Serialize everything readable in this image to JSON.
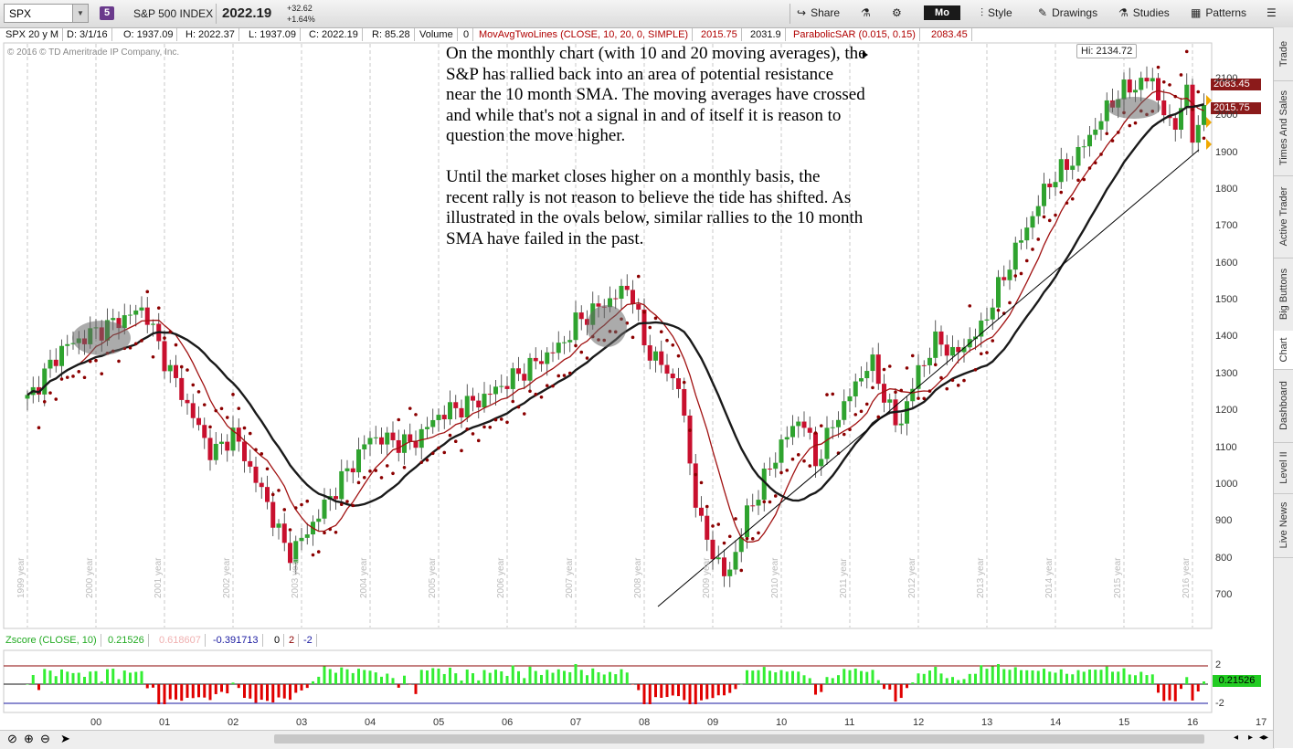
{
  "toolbar": {
    "symbol": "SPX",
    "badge": "5",
    "symbol_name": "S&P 500 INDEX",
    "last_price": "2022.19",
    "change_abs": "+32.62",
    "change_pct": "+1.64%",
    "share": "Share",
    "period": "Mo",
    "style": "Style",
    "drawings": "Drawings",
    "studies": "Studies",
    "patterns": "Patterns"
  },
  "infobar": {
    "symbol_period": "SPX 20 y M",
    "date": "D: 3/1/16",
    "open": "O: 1937.09",
    "high": "H: 2022.37",
    "low": "L: 1937.09",
    "close": "C: 2022.19",
    "range": "R: 85.28",
    "volume_label": "Volume",
    "volume_value": "0",
    "sma_study": "MovAvgTwoLines (CLOSE, 10, 20, 0, SIMPLE)",
    "sma1": "2015.75",
    "sma2": "2031.9",
    "sar_study": "ParabolicSAR (0.015, 0.15)",
    "sar_value": "2083.45"
  },
  "copyright": "© 2016 © TD Ameritrade IP Company, Inc.",
  "annotation": {
    "para1": "On the monthly chart (with 10 and 20 moving averages), the S&P has rallied back into an area of potential resistance near the 10 month SMA. The moving averages have crossed and while that's not a signal in and of itself it is reason to question the move higher.",
    "para2": "Until the market closes higher on a monthly basis, the recent rally is not reason to believe the tide has shifted.  As illustrated in the ovals below, similar rallies to the 10 month SMA have failed in the past."
  },
  "hi_label": "Hi: 2134.72",
  "price_tags": {
    "sar": "2083.45",
    "sma": "2015.75"
  },
  "price_axis": [
    "2100",
    "2000",
    "1900",
    "1800",
    "1700",
    "1600",
    "1500",
    "1400",
    "1300",
    "1200",
    "1100",
    "1000",
    "900",
    "800",
    "700"
  ],
  "year_labels": [
    "1999 year",
    "2000 year",
    "2001 year",
    "2002 year",
    "2003 year",
    "2004 year",
    "2005 year",
    "2006 year",
    "2007 year",
    "2008 year",
    "2009 year",
    "2010 year",
    "2011 year",
    "2012 year",
    "2013 year",
    "2014 year",
    "2015 year",
    "2016 year"
  ],
  "zscore": {
    "study": "Zscore (CLOSE, 10)",
    "value": "0.21526",
    "v2": "0.618607",
    "v3": "-0.391713",
    "v4": "0",
    "v5": "2",
    "v6": "-2",
    "axis_top": "2",
    "axis_bottom": "-2",
    "tag": "0.21526"
  },
  "x_axis": [
    "00",
    "01",
    "02",
    "03",
    "04",
    "05",
    "06",
    "07",
    "08",
    "09",
    "10",
    "11",
    "12",
    "13",
    "14",
    "15",
    "16",
    "17"
  ],
  "side_tabs": [
    "Trade",
    "Times And Sales",
    "Active Trader",
    "Big Buttons",
    "Chart",
    "Dashboard",
    "Level II",
    "Live News"
  ],
  "colors": {
    "up": "#2fa32f",
    "down": "#c8102e",
    "sar": "#8b0000",
    "sma10": "#a01010",
    "sma20": "#1a1a1a"
  },
  "chart_data": {
    "type": "candlestick",
    "timeframe": "monthly",
    "ylim": [
      650,
      2200
    ],
    "xlim": [
      "1999",
      "2017"
    ],
    "key_points": [
      {
        "date": "2000-08",
        "close": 1520
      },
      {
        "date": "2002-10",
        "close": 800
      },
      {
        "date": "2007-10",
        "close": 1550
      },
      {
        "date": "2009-03",
        "close": 680
      },
      {
        "date": "2015-05",
        "close": 2134.72
      },
      {
        "date": "2016-01",
        "close": 1900
      },
      {
        "date": "2016-03",
        "close": 2022.19
      }
    ]
  }
}
